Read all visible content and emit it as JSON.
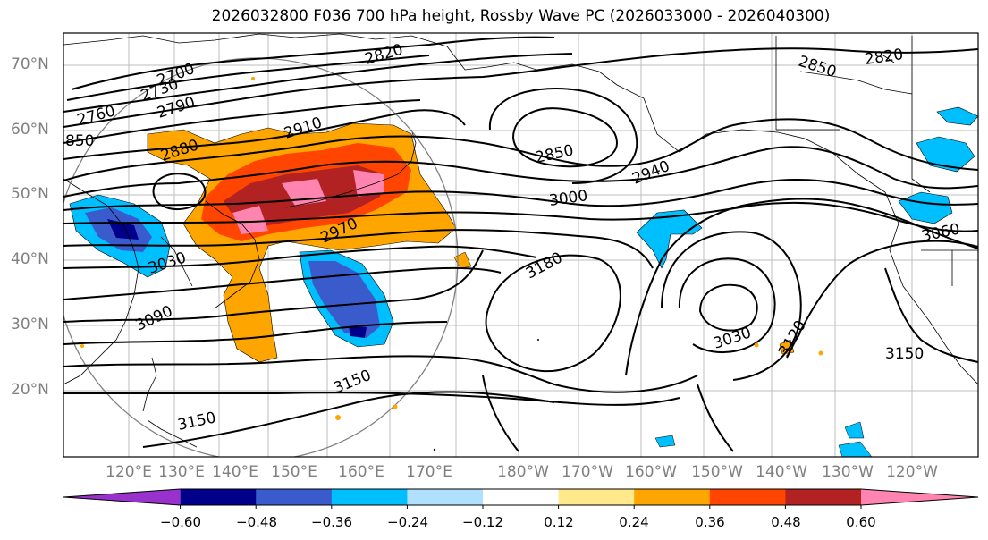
{
  "title": "2026032800 F036 700 hPa height, Rossby Wave PC (2026033000 - 2026040300)",
  "lat_labels": [
    "70°N",
    "60°N",
    "50°N",
    "40°N",
    "30°N",
    "20°N"
  ],
  "lon_labels": [
    "120°E",
    "130°E",
    "140°E",
    "150°E",
    "160°E",
    "170°E",
    "180°W",
    "170°W",
    "160°W",
    "150°W",
    "140°W",
    "130°W",
    "120°W"
  ],
  "contour_labels": [
    "2700",
    "2730",
    "2760",
    "2790",
    "850",
    "2820",
    "2850",
    "2820",
    "2910",
    "2880",
    "2850",
    "2940",
    "3000",
    "2970",
    "3030",
    "3180",
    "3060",
    "3090",
    "3030",
    "3120",
    "3150",
    "3150",
    "3150"
  ],
  "colorbar": {
    "ticks": [
      "−0.60",
      "−0.48",
      "−0.36",
      "−0.24",
      "−0.12",
      "0.12",
      "0.24",
      "0.36",
      "0.48",
      "0.60"
    ],
    "colors": [
      "#9932cc",
      "#00008b",
      "#3a5bcc",
      "#00bfff",
      "#b0e0ff",
      "#ffffff",
      "#ffe98a",
      "#ffa500",
      "#ff4500",
      "#b22222",
      "#ff85b0"
    ]
  }
}
